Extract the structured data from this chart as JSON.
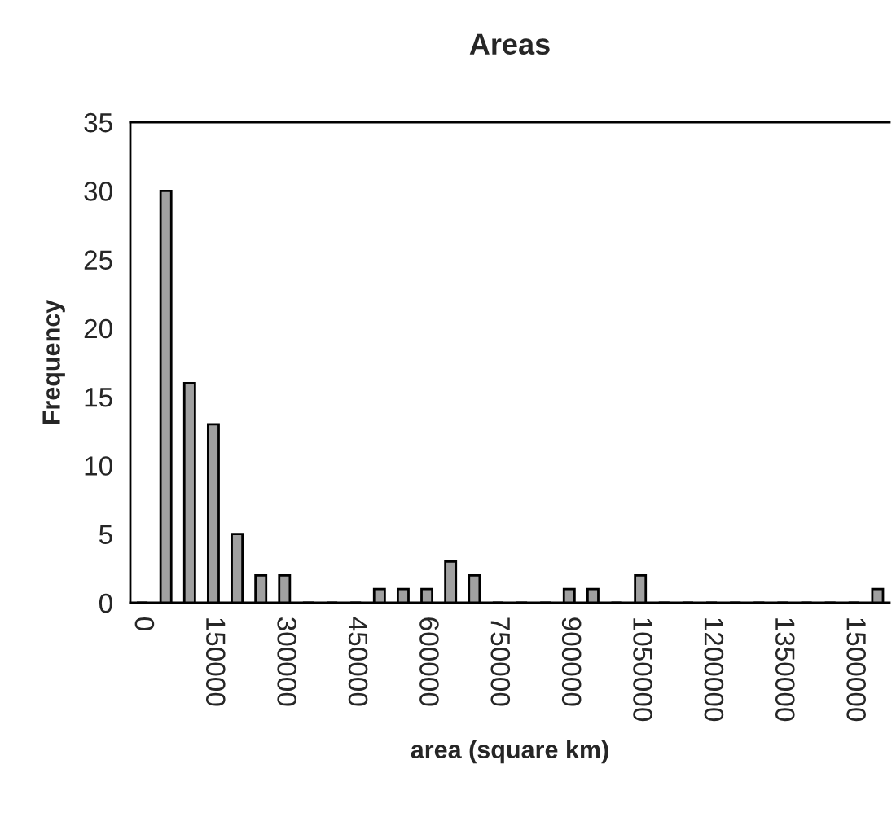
{
  "chart_data": {
    "type": "bar",
    "title": "Areas",
    "xlabel": "area (square km)",
    "ylabel": "Frequency",
    "categories": [
      "0",
      null,
      null,
      "150000",
      null,
      null,
      "300000",
      null,
      null,
      "450000",
      null,
      null,
      "600000",
      null,
      null,
      "750000",
      null,
      null,
      "900000",
      null,
      null,
      "1050000",
      null,
      null,
      "1200000",
      null,
      null,
      "1350000",
      null,
      null,
      "1500000",
      null
    ],
    "values": [
      0,
      30,
      16,
      13,
      5,
      2,
      2,
      0,
      0,
      0,
      1,
      1,
      1,
      3,
      2,
      0,
      0,
      0,
      1,
      1,
      0,
      2,
      0,
      0,
      0,
      0,
      0,
      0,
      0,
      0,
      0,
      1
    ],
    "color": "#a0a0a0",
    "ylim": [
      0,
      35
    ],
    "yticks": [
      0,
      5,
      10,
      15,
      20,
      25,
      30,
      35
    ],
    "grid": false,
    "legend": false
  }
}
